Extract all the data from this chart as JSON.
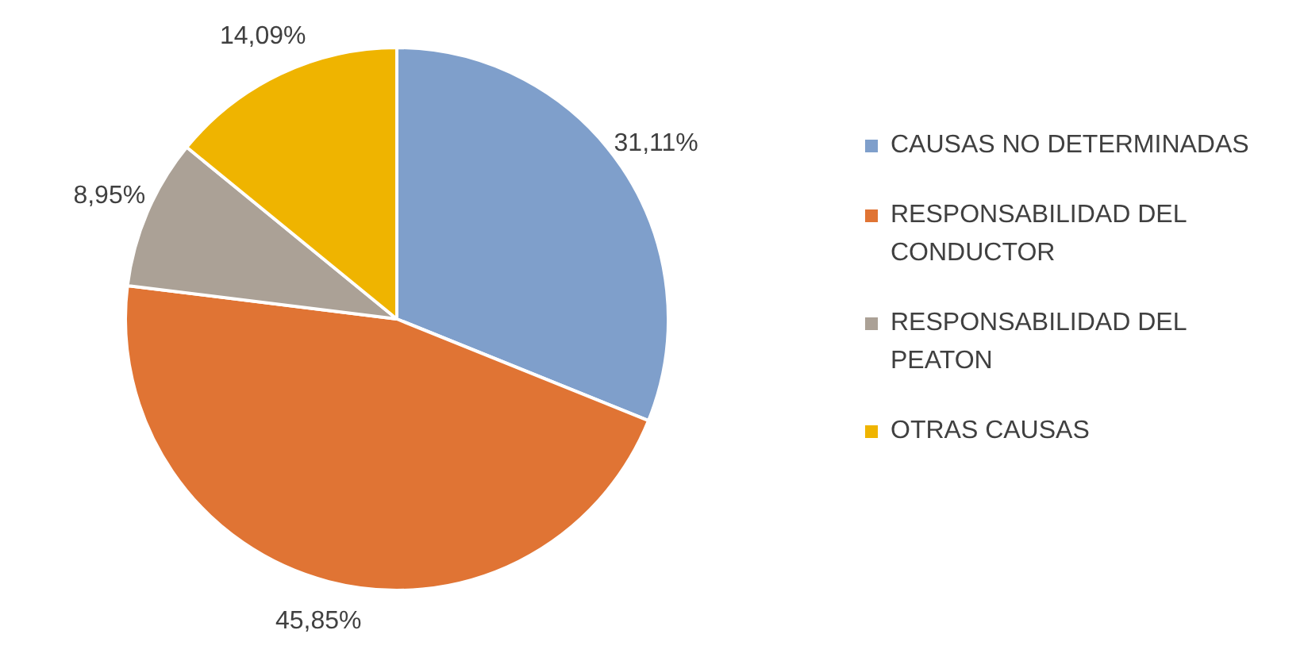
{
  "chart_data": {
    "type": "pie",
    "categories": [
      "CAUSAS NO DETERMINADAS",
      "RESPONSABILIDAD DEL CONDUCTOR",
      "RESPONSABILIDAD DEL PEATON",
      "OTRAS CAUSAS"
    ],
    "values": [
      31.11,
      45.85,
      8.95,
      14.09
    ],
    "colors": [
      "#7f9fcb",
      "#e07434",
      "#aba196",
      "#efb400"
    ],
    "value_labels": [
      "31,11%",
      "45,85%",
      "8,95%",
      "14,09%"
    ],
    "legend": "right"
  }
}
